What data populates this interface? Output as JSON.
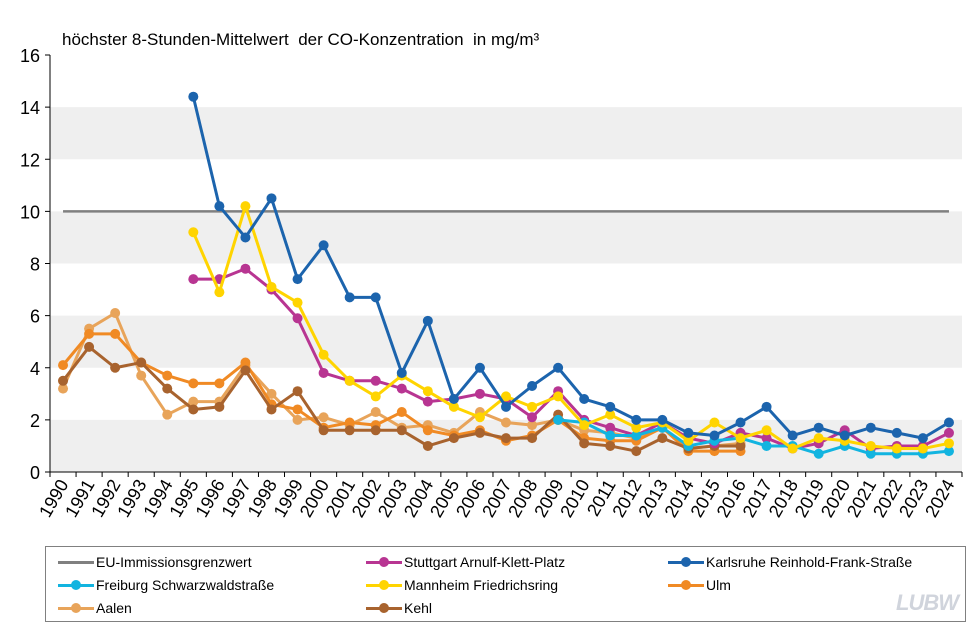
{
  "chart_data": {
    "type": "line",
    "title": "höchster 8-Stunden-Mittelwert  der CO-Konzentration  in mg/m³",
    "xlabel": "",
    "ylabel": "",
    "ylim": [
      0,
      16
    ],
    "yticks": [
      0,
      2,
      4,
      6,
      8,
      10,
      12,
      14,
      16
    ],
    "categories": [
      "1990",
      "1991",
      "1992",
      "1993",
      "1994",
      "1995",
      "1996",
      "1997",
      "1998",
      "1999",
      "2000",
      "2001",
      "2002",
      "2003",
      "2004",
      "2005",
      "2006",
      "2007",
      "2008",
      "2009",
      "2010",
      "2011",
      "2012",
      "2013",
      "2014",
      "2015",
      "2016",
      "2017",
      "2018",
      "2019",
      "2020",
      "2021",
      "2022",
      "2023",
      "2024"
    ],
    "grid": "alternating horizontal bands",
    "legend_position": "bottom",
    "series": [
      {
        "name": "EU-Immissionsgrenzwert",
        "color": "#808080",
        "markers": false,
        "values": [
          10,
          10,
          10,
          10,
          10,
          10,
          10,
          10,
          10,
          10,
          10,
          10,
          10,
          10,
          10,
          10,
          10,
          10,
          10,
          10,
          10,
          10,
          10,
          10,
          10,
          10,
          10,
          10,
          10,
          10,
          10,
          10,
          10,
          10,
          10
        ]
      },
      {
        "name": "Aalen",
        "color": "#e8a45a",
        "markers": true,
        "values": [
          3.2,
          5.5,
          6.1,
          3.7,
          2.2,
          2.7,
          2.7,
          4.1,
          3.0,
          2.0,
          2.1,
          1.8,
          2.3,
          1.7,
          1.8,
          1.5,
          2.3,
          1.9,
          1.8,
          2.0,
          1.6,
          1.5,
          1.3,
          1.7,
          0.9,
          1.0,
          1.1,
          null,
          null,
          null,
          null,
          null,
          null,
          null,
          null
        ]
      },
      {
        "name": "Ulm",
        "color": "#f08a24",
        "markers": true,
        "values": [
          4.1,
          5.3,
          5.3,
          4.2,
          3.7,
          3.4,
          3.4,
          4.2,
          2.6,
          2.4,
          1.7,
          1.9,
          1.8,
          2.3,
          1.6,
          1.4,
          1.6,
          1.2,
          1.4,
          2.0,
          1.3,
          1.2,
          1.2,
          1.7,
          0.8,
          0.8,
          0.8,
          null,
          null,
          null,
          null,
          null,
          null,
          null,
          null
        ]
      },
      {
        "name": "Kehl",
        "color": "#a8632e",
        "markers": true,
        "values": [
          3.5,
          4.8,
          4.0,
          4.2,
          3.2,
          2.4,
          2.5,
          3.9,
          2.4,
          3.1,
          1.6,
          1.6,
          1.6,
          1.6,
          1.0,
          1.3,
          1.5,
          1.3,
          1.3,
          2.2,
          1.1,
          1.0,
          0.8,
          1.3,
          0.9,
          1.0,
          1.0,
          null,
          null,
          null,
          null,
          null,
          null,
          null,
          null
        ]
      },
      {
        "name": "Stuttgart Arnulf-Klett-Platz",
        "color": "#b83592",
        "markers": true,
        "values": [
          null,
          null,
          null,
          null,
          null,
          7.4,
          7.4,
          7.8,
          7.0,
          5.9,
          3.8,
          3.5,
          3.5,
          3.2,
          2.7,
          2.8,
          3.0,
          2.8,
          2.1,
          3.1,
          2.0,
          1.7,
          1.4,
          1.9,
          1.3,
          1.1,
          1.5,
          1.3,
          0.9,
          1.1,
          1.6,
          0.9,
          1.0,
          1.0,
          1.5
        ]
      },
      {
        "name": "Freiburg Schwarzwaldstraße",
        "color": "#12b4e0",
        "markers": true,
        "values": [
          null,
          null,
          null,
          null,
          null,
          null,
          null,
          null,
          null,
          null,
          null,
          null,
          null,
          null,
          null,
          null,
          null,
          null,
          null,
          2.0,
          1.9,
          1.4,
          1.4,
          1.7,
          1.0,
          1.2,
          1.3,
          1.0,
          1.0,
          0.7,
          1.0,
          0.7,
          0.7,
          0.7,
          0.8
        ]
      },
      {
        "name": "Mannheim Friedrichsring",
        "color": "#ffd400",
        "markers": true,
        "values": [
          null,
          null,
          null,
          null,
          null,
          9.2,
          6.9,
          10.2,
          7.1,
          6.5,
          4.5,
          3.5,
          2.9,
          3.7,
          3.1,
          2.5,
          2.1,
          2.9,
          2.5,
          2.9,
          1.8,
          2.2,
          1.7,
          1.9,
          1.2,
          1.9,
          1.3,
          1.6,
          0.9,
          1.3,
          1.2,
          1.0,
          0.9,
          0.9,
          1.1
        ]
      },
      {
        "name": "Karlsruhe Reinhold-Frank-Straße",
        "color": "#1c64ad",
        "markers": true,
        "values": [
          null,
          null,
          null,
          null,
          null,
          14.4,
          10.2,
          9.0,
          10.5,
          7.4,
          8.7,
          6.7,
          6.7,
          3.8,
          5.8,
          2.8,
          4.0,
          2.5,
          3.3,
          4.0,
          2.8,
          2.5,
          2.0,
          2.0,
          1.5,
          1.4,
          1.9,
          2.5,
          1.4,
          1.7,
          1.4,
          1.7,
          1.5,
          1.3,
          1.9
        ]
      }
    ]
  },
  "legend": {
    "items": [
      {
        "label": "EU-Immissionsgrenzwert",
        "color": "#808080",
        "marker": false
      },
      {
        "label": "Stuttgart Arnulf-Klett-Platz",
        "color": "#b83592",
        "marker": true
      },
      {
        "label": "Karlsruhe Reinhold-Frank-Straße",
        "color": "#1c64ad",
        "marker": true
      },
      {
        "label": "Freiburg Schwarzwaldstraße",
        "color": "#12b4e0",
        "marker": true
      },
      {
        "label": "Mannheim Friedrichsring",
        "color": "#ffd400",
        "marker": true
      },
      {
        "label": "Ulm",
        "color": "#f08a24",
        "marker": true
      },
      {
        "label": "Aalen",
        "color": "#e8a45a",
        "marker": true
      },
      {
        "label": "Kehl",
        "color": "#a8632e",
        "marker": true
      }
    ]
  },
  "logo": {
    "text": "LUBW"
  }
}
